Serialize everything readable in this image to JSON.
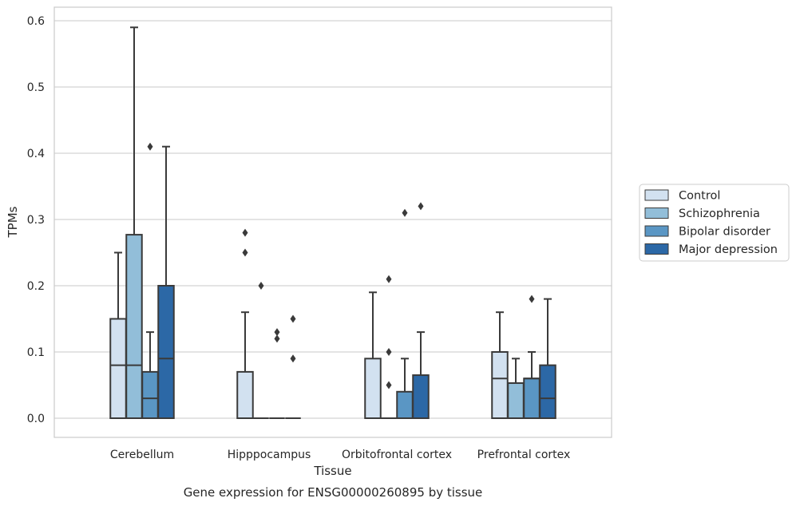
{
  "chart_data": {
    "type": "box",
    "title": "",
    "xlabel": "Tissue",
    "ylabel": "TPMs",
    "caption": "Gene expression for ENSG00000260895 by tissue",
    "ylim": [
      -0.028,
      0.62
    ],
    "yticks": [
      "0.0",
      "0.1",
      "0.2",
      "0.3",
      "0.4",
      "0.5",
      "0.6"
    ],
    "ytick_values": [
      0.0,
      0.1,
      0.2,
      0.3,
      0.4,
      0.5,
      0.6
    ],
    "grid": "horizontal",
    "legend_position": "right",
    "categories": [
      "Cerebellum",
      "Hipppocampus",
      "Orbitofrontal cortex",
      "Prefrontal cortex"
    ],
    "series": [
      {
        "name": "Control",
        "color": "#d2e1f0",
        "boxes": [
          {
            "q1": 0.0,
            "median": 0.08,
            "q3": 0.15,
            "whisker_low": 0.0,
            "whisker_high": 0.25,
            "outliers": []
          },
          {
            "q1": 0.0,
            "median": 0.0,
            "q3": 0.07,
            "whisker_low": 0.0,
            "whisker_high": 0.16,
            "outliers": [
              0.25,
              0.28
            ]
          },
          {
            "q1": 0.0,
            "median": 0.0,
            "q3": 0.09,
            "whisker_low": 0.0,
            "whisker_high": 0.19,
            "outliers": []
          },
          {
            "q1": 0.0,
            "median": 0.06,
            "q3": 0.1,
            "whisker_low": 0.0,
            "whisker_high": 0.16,
            "outliers": []
          }
        ]
      },
      {
        "name": "Schizophrenia",
        "color": "#92bed9",
        "boxes": [
          {
            "q1": 0.0,
            "median": 0.08,
            "q3": 0.277,
            "whisker_low": 0.0,
            "whisker_high": 0.59,
            "outliers": []
          },
          {
            "q1": 0.0,
            "median": 0.0,
            "q3": 0.0,
            "whisker_low": 0.0,
            "whisker_high": 0.0,
            "outliers": [
              0.2
            ]
          },
          {
            "q1": 0.0,
            "median": 0.0,
            "q3": 0.0,
            "whisker_low": 0.0,
            "whisker_high": 0.0,
            "outliers": [
              0.05,
              0.1,
              0.21
            ]
          },
          {
            "q1": 0.0,
            "median": 0.053,
            "q3": 0.053,
            "whisker_low": 0.0,
            "whisker_high": 0.09,
            "outliers": []
          }
        ]
      },
      {
        "name": "Bipolar disorder",
        "color": "#5a96c4",
        "boxes": [
          {
            "q1": 0.0,
            "median": 0.03,
            "q3": 0.07,
            "whisker_low": 0.0,
            "whisker_high": 0.13,
            "outliers": [
              0.41
            ]
          },
          {
            "q1": 0.0,
            "median": 0.0,
            "q3": 0.0,
            "whisker_low": 0.0,
            "whisker_high": 0.0,
            "outliers": [
              0.12,
              0.13
            ]
          },
          {
            "q1": 0.0,
            "median": 0.0,
            "q3": 0.04,
            "whisker_low": 0.0,
            "whisker_high": 0.09,
            "outliers": [
              0.31
            ]
          },
          {
            "q1": 0.0,
            "median": 0.06,
            "q3": 0.06,
            "whisker_low": 0.0,
            "whisker_high": 0.1,
            "outliers": [
              0.18
            ]
          }
        ]
      },
      {
        "name": "Major depression",
        "color": "#2c68a6",
        "boxes": [
          {
            "q1": 0.0,
            "median": 0.09,
            "q3": 0.2,
            "whisker_low": 0.0,
            "whisker_high": 0.41,
            "outliers": []
          },
          {
            "q1": 0.0,
            "median": 0.0,
            "q3": 0.0,
            "whisker_low": 0.0,
            "whisker_high": 0.0,
            "outliers": [
              0.09,
              0.15
            ]
          },
          {
            "q1": 0.0,
            "median": 0.0,
            "q3": 0.065,
            "whisker_low": 0.0,
            "whisker_high": 0.13,
            "outliers": [
              0.32
            ]
          },
          {
            "q1": 0.0,
            "median": 0.03,
            "q3": 0.08,
            "whisker_low": 0.0,
            "whisker_high": 0.18,
            "outliers": []
          }
        ]
      }
    ]
  }
}
